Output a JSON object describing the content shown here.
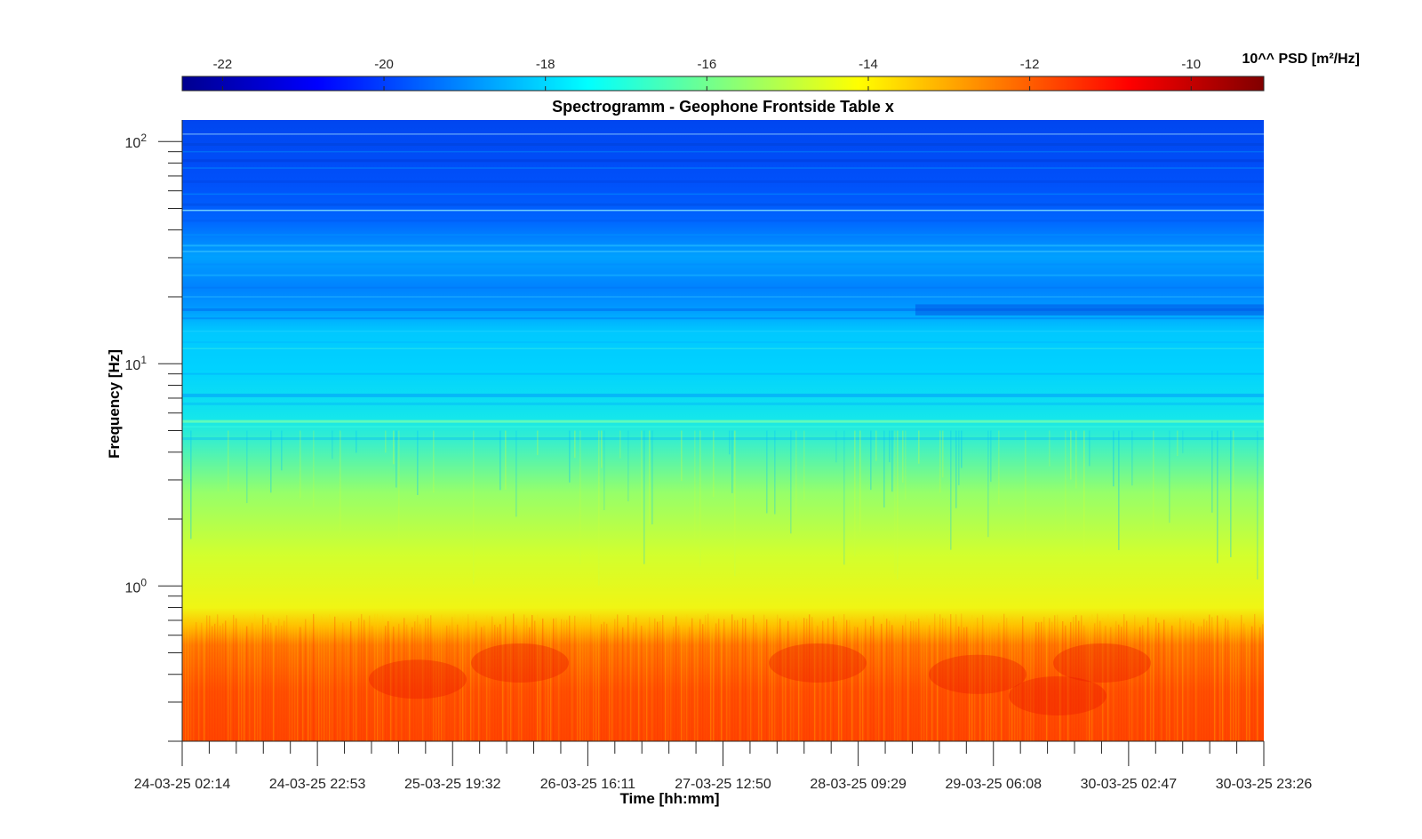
{
  "chart_data": {
    "type": "heatmap",
    "title": "Spectrogramm - Geophone Frontside Table x",
    "xlabel": "Time [hh:mm]",
    "ylabel": "Frequency [Hz]",
    "x_ticks": [
      "24-03-25 02:14",
      "24-03-25 22:53",
      "25-03-25 19:32",
      "26-03-25 16:11",
      "27-03-25 12:50",
      "28-03-25 09:29",
      "29-03-25 06:08",
      "30-03-25 02:47",
      "30-03-25 23:26"
    ],
    "y_scale": "log",
    "y_ticks": [
      {
        "base": "10",
        "exp": "0",
        "value": 1
      },
      {
        "base": "10",
        "exp": "1",
        "value": 10
      },
      {
        "base": "10",
        "exp": "2",
        "value": 100
      }
    ],
    "ylim": [
      0.2,
      125
    ],
    "colorbar": {
      "label": "10^^ PSD [m²/Hz]",
      "ticks": [
        "-22",
        "-20",
        "-18",
        "-16",
        "-14",
        "-12",
        "-10"
      ],
      "range": [
        -22.5,
        -9.1
      ],
      "colormap": "jet",
      "placement": "top"
    },
    "approx_log10_psd_by_frequency": [
      {
        "freq_hz": 0.3,
        "log10_psd": -11.7
      },
      {
        "freq_hz": 0.5,
        "log10_psd": -12.0
      },
      {
        "freq_hz": 0.7,
        "log10_psd": -13.2
      },
      {
        "freq_hz": 1,
        "log10_psd": -14.3
      },
      {
        "freq_hz": 2,
        "log10_psd": -15.2
      },
      {
        "freq_hz": 4,
        "log10_psd": -16.2
      },
      {
        "freq_hz": 5.5,
        "log10_psd": -16.0
      },
      {
        "freq_hz": 8,
        "log10_psd": -17.3
      },
      {
        "freq_hz": 12,
        "log10_psd": -17.4
      },
      {
        "freq_hz": 18,
        "log10_psd": -18.8
      },
      {
        "freq_hz": 30,
        "log10_psd": -18.0
      },
      {
        "freq_hz": 50,
        "log10_psd": -19.8
      },
      {
        "freq_hz": 100,
        "log10_psd": -20.2
      }
    ],
    "grid": false
  }
}
